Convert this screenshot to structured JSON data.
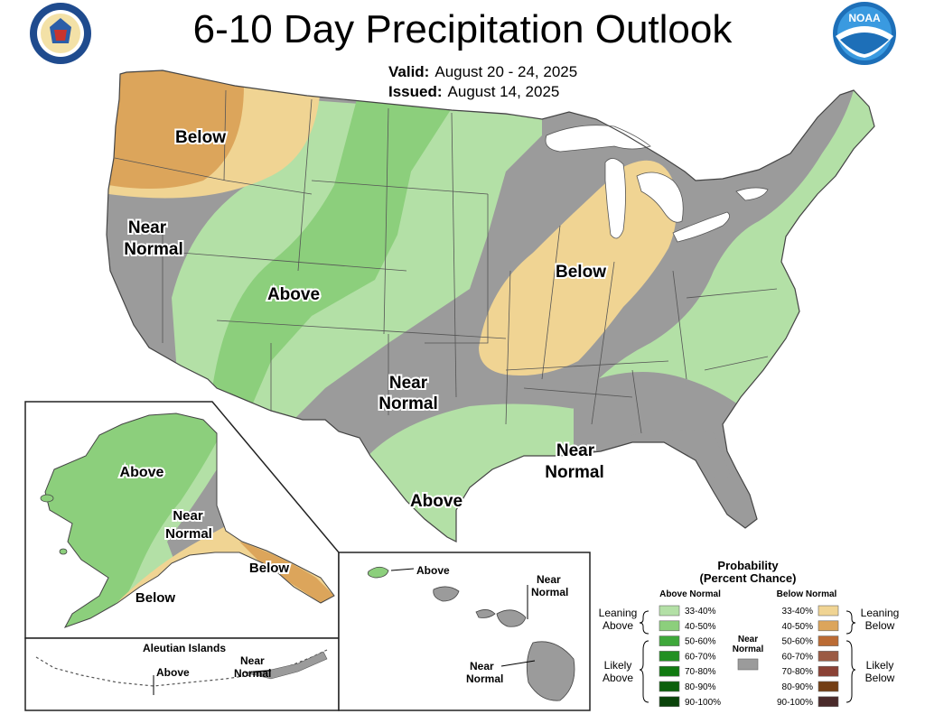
{
  "title": "6-10 Day Precipitation Outlook",
  "valid_label": "Valid:",
  "valid_value": "August 20 - 24, 2025",
  "issued_label": "Issued:",
  "issued_value": "August 14, 2025",
  "logos": {
    "left": "doc-seal-icon",
    "right": "noaa-logo-icon",
    "right_text": "NOAA"
  },
  "map_labels": {
    "nw_below": "Below",
    "west_near": [
      "Near",
      "Normal"
    ],
    "rockies_above": "Above",
    "midwest_below": "Below",
    "plains_near": [
      "Near",
      "Normal"
    ],
    "southeast_near": [
      "Near",
      "Normal"
    ],
    "texas_above": "Above"
  },
  "alaska_labels": {
    "above": "Above",
    "near": [
      "Near",
      "Normal"
    ],
    "below_se": "Below",
    "below_sw": "Below"
  },
  "aleutian": {
    "title": "Aleutian Islands",
    "above": "Above",
    "near": [
      "Near",
      "Normal"
    ]
  },
  "hawaii": {
    "above": "Above",
    "near_top": [
      "Near",
      "Normal"
    ],
    "near_bottom": [
      "Near",
      "Normal"
    ]
  },
  "legend": {
    "title1": "Probability",
    "title2": "(Percent Chance)",
    "above_header": "Above Normal",
    "below_header": "Below Normal",
    "near_label": [
      "Near",
      "Normal"
    ],
    "leaning_above": [
      "Leaning",
      "Above"
    ],
    "likely_above": [
      "Likely",
      "Above"
    ],
    "leaning_below": [
      "Leaning",
      "Below"
    ],
    "likely_below": [
      "Likely",
      "Below"
    ],
    "above_bins": [
      {
        "label": "33-40%",
        "color": "#b3e0a6"
      },
      {
        "label": "40-50%",
        "color": "#8ccf7c"
      },
      {
        "label": "50-60%",
        "color": "#3ea83a"
      },
      {
        "label": "60-70%",
        "color": "#229022"
      },
      {
        "label": "70-80%",
        "color": "#117a11"
      },
      {
        "label": "80-90%",
        "color": "#0b600b"
      },
      {
        "label": "90-100%",
        "color": "#0a430a"
      }
    ],
    "below_bins": [
      {
        "label": "33-40%",
        "color": "#f0d493"
      },
      {
        "label": "40-50%",
        "color": "#dca55b"
      },
      {
        "label": "50-60%",
        "color": "#bb6b34"
      },
      {
        "label": "60-70%",
        "color": "#9b5a43"
      },
      {
        "label": "70-80%",
        "color": "#8a4135"
      },
      {
        "label": "80-90%",
        "color": "#733e14"
      },
      {
        "label": "90-100%",
        "color": "#4a2a2a"
      }
    ],
    "near_color": "#9b9b9b"
  },
  "colors": {
    "near": "#9b9b9b",
    "above_light": "#b3e0a6",
    "above_mid": "#8ccf7c",
    "below_light": "#f0d493",
    "below_mid": "#dca55b",
    "border": "#555555",
    "lakes": "#ffffff"
  }
}
